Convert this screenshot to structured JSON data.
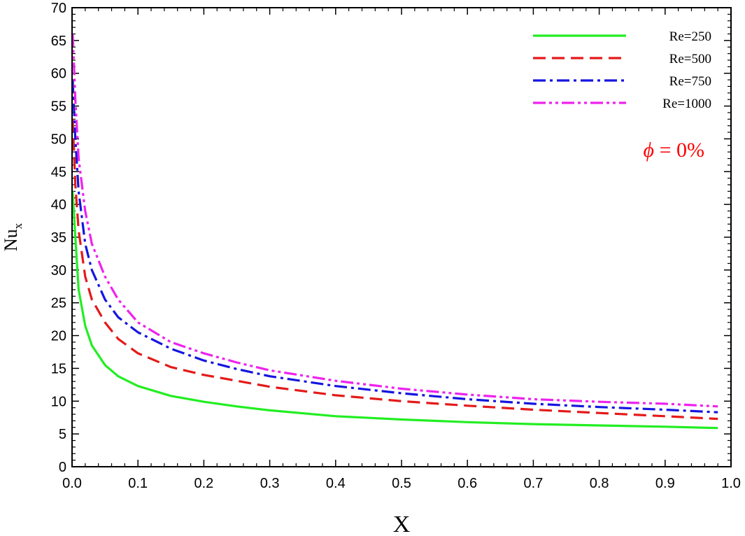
{
  "chart_data": {
    "type": "line",
    "title": "",
    "xlabel": "X",
    "ylabel": "Nu",
    "ylabel_sub": "x",
    "xlim": [
      0.0,
      1.0
    ],
    "ylim": [
      0,
      70
    ],
    "x_ticks": [
      0.0,
      0.1,
      0.2,
      0.3,
      0.4,
      0.5,
      0.6,
      0.7,
      0.8,
      0.9,
      1.0
    ],
    "x_tick_labels": [
      "0.0",
      "0.1",
      "0.2",
      "0.3",
      "0.4",
      "0.5",
      "0.6",
      "0.7",
      "0.8",
      "0.9",
      "1.0"
    ],
    "y_ticks": [
      0,
      5,
      10,
      15,
      20,
      25,
      30,
      35,
      40,
      45,
      50,
      55,
      60,
      65,
      70
    ],
    "y_tick_labels": [
      "0",
      "5",
      "10",
      "15",
      "20",
      "25",
      "30",
      "35",
      "40",
      "45",
      "50",
      "55",
      "60",
      "65",
      "70"
    ],
    "grid": false,
    "legend_position": "top-right",
    "annotation": {
      "symbol": "ϕ",
      "text": " = 0%",
      "color": "#ff0000"
    },
    "series": [
      {
        "name": "Re=250",
        "color": "#22ee22",
        "dash": "",
        "x": [
          0.001,
          0.005,
          0.01,
          0.02,
          0.03,
          0.05,
          0.07,
          0.1,
          0.15,
          0.2,
          0.25,
          0.3,
          0.4,
          0.5,
          0.6,
          0.7,
          0.8,
          0.9,
          0.98
        ],
        "y": [
          42,
          35,
          27,
          21.5,
          18.5,
          15.5,
          13.8,
          12.3,
          10.8,
          9.9,
          9.2,
          8.6,
          7.7,
          7.2,
          6.8,
          6.5,
          6.3,
          6.1,
          5.9
        ]
      },
      {
        "name": "Re=500",
        "color": "#e41a1a",
        "dash": "18,9",
        "x": [
          0.001,
          0.005,
          0.01,
          0.02,
          0.03,
          0.05,
          0.07,
          0.1,
          0.15,
          0.2,
          0.25,
          0.3,
          0.4,
          0.5,
          0.6,
          0.7,
          0.8,
          0.9,
          0.98
        ],
        "y": [
          53,
          43,
          36,
          29,
          25.5,
          22,
          19.5,
          17.3,
          15.2,
          14,
          13.1,
          12.2,
          10.9,
          10,
          9.3,
          8.7,
          8.2,
          7.7,
          7.3
        ]
      },
      {
        "name": "Re=750",
        "color": "#1515e0",
        "dash": "18,6,4,6",
        "x": [
          0.001,
          0.005,
          0.01,
          0.02,
          0.03,
          0.05,
          0.07,
          0.1,
          0.15,
          0.2,
          0.25,
          0.3,
          0.4,
          0.5,
          0.6,
          0.7,
          0.8,
          0.9,
          0.98
        ],
        "y": [
          59,
          50,
          42,
          34,
          30,
          25.5,
          22.8,
          20.5,
          18,
          16.2,
          14.9,
          13.8,
          12.3,
          11.2,
          10.3,
          9.6,
          9.1,
          8.7,
          8.3
        ]
      },
      {
        "name": "Re=1000",
        "color": "#ee22ee",
        "dash": "18,5,4,5,4,5",
        "x": [
          0.001,
          0.005,
          0.01,
          0.02,
          0.03,
          0.05,
          0.07,
          0.1,
          0.15,
          0.2,
          0.25,
          0.3,
          0.4,
          0.5,
          0.6,
          0.7,
          0.8,
          0.9,
          0.98
        ],
        "y": [
          66,
          56,
          47,
          39,
          34,
          29,
          25.5,
          22,
          19,
          17.3,
          15.9,
          14.7,
          13.1,
          11.9,
          11,
          10.3,
          9.9,
          9.6,
          9.2
        ]
      }
    ]
  }
}
